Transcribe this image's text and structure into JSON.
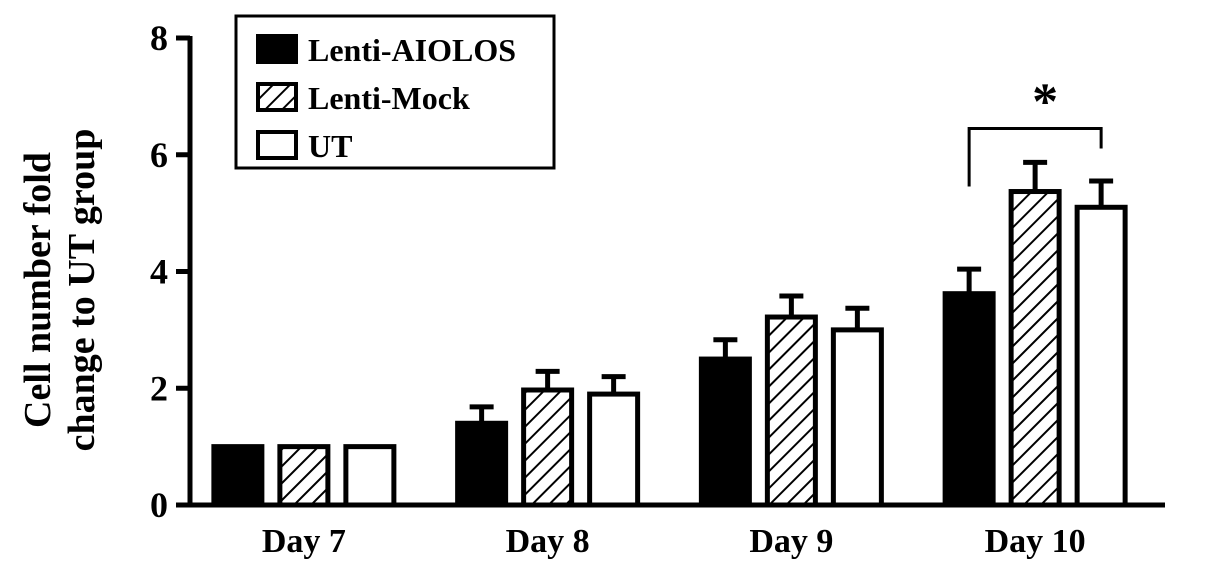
{
  "chart_data": {
    "type": "bar",
    "title": "",
    "xlabel": "",
    "ylabel_lines": [
      "Cell number fold",
      "change to UT group"
    ],
    "categories": [
      "Day 7",
      "Day 8",
      "Day 9",
      "Day 10"
    ],
    "ylim": [
      0,
      8
    ],
    "yticks": [
      "0",
      "2",
      "4",
      "6",
      "8"
    ],
    "series": [
      {
        "name": "Lenti-AIOLOS",
        "values": [
          1.0,
          1.4,
          2.5,
          3.62
        ],
        "errors": [
          0,
          0.28,
          0.33,
          0.42
        ],
        "fill": "solid",
        "color": "#000000"
      },
      {
        "name": "Lenti-Mock",
        "values": [
          1.0,
          1.97,
          3.22,
          5.37
        ],
        "errors": [
          0,
          0.32,
          0.36,
          0.5
        ],
        "fill": "hatch",
        "color": "#000000"
      },
      {
        "name": "UT",
        "values": [
          1.0,
          1.9,
          3.0,
          5.1
        ],
        "errors": [
          0,
          0.3,
          0.37,
          0.45
        ],
        "fill": "open",
        "color": "#ffffff"
      }
    ],
    "legend": {
      "position": "top-left"
    },
    "grid": false,
    "annotations": [
      {
        "text": "*",
        "category": "Day 10",
        "from_series": "Lenti-AIOLOS",
        "to_series": "UT",
        "type": "significance-bracket"
      }
    ]
  }
}
